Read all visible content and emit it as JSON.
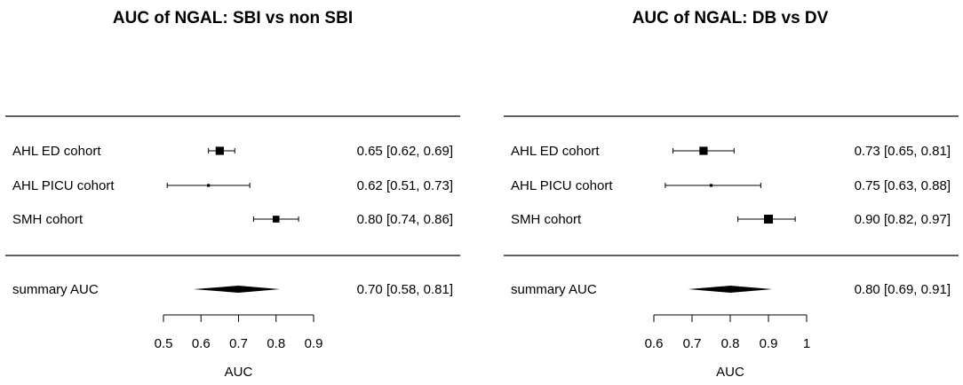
{
  "chart_data": [
    {
      "type": "forest",
      "title": "AUC of NGAL: SBI vs non SBI",
      "xlabel": "AUC",
      "xlim": [
        0.5,
        0.9
      ],
      "ticks": [
        0.5,
        0.6,
        0.7,
        0.8,
        0.9
      ],
      "tick_labels": [
        "0.5",
        "0.6",
        "0.7",
        "0.8",
        "0.9"
      ],
      "studies": [
        {
          "label": "AHL ED cohort",
          "estimate": 0.65,
          "lower": 0.62,
          "upper": 0.69,
          "ci_text": "0.65 [0.62, 0.69]",
          "weight": 0.9
        },
        {
          "label": "AHL PICU cohort",
          "estimate": 0.62,
          "lower": 0.51,
          "upper": 0.73,
          "ci_text": "0.62 [0.51, 0.73]",
          "weight": 0.15
        },
        {
          "label": "SMH cohort",
          "estimate": 0.8,
          "lower": 0.74,
          "upper": 0.86,
          "ci_text": "0.80 [0.74, 0.86]",
          "weight": 0.7
        }
      ],
      "summary": {
        "label": "summary AUC",
        "estimate": 0.7,
        "lower": 0.58,
        "upper": 0.81,
        "ci_text": "0.70 [0.58, 0.81]"
      }
    },
    {
      "type": "forest",
      "title": "AUC of NGAL: DB vs DV",
      "xlabel": "AUC",
      "xlim": [
        0.6,
        1.0
      ],
      "ticks": [
        0.6,
        0.7,
        0.8,
        0.9,
        1.0
      ],
      "tick_labels": [
        "0.6",
        "0.7",
        "0.8",
        "0.9",
        "1"
      ],
      "studies": [
        {
          "label": "AHL ED cohort",
          "estimate": 0.73,
          "lower": 0.65,
          "upper": 0.81,
          "ci_text": "0.73 [0.65, 0.81]",
          "weight": 0.9
        },
        {
          "label": "AHL PICU cohort",
          "estimate": 0.75,
          "lower": 0.63,
          "upper": 0.88,
          "ci_text": "0.75 [0.63, 0.88]",
          "weight": 0.15
        },
        {
          "label": "SMH cohort",
          "estimate": 0.9,
          "lower": 0.82,
          "upper": 0.97,
          "ci_text": "0.90 [0.82, 0.97]",
          "weight": 1.0
        }
      ],
      "summary": {
        "label": "summary AUC",
        "estimate": 0.8,
        "lower": 0.69,
        "upper": 0.91,
        "ci_text": "0.80 [0.69, 0.91]"
      }
    }
  ]
}
